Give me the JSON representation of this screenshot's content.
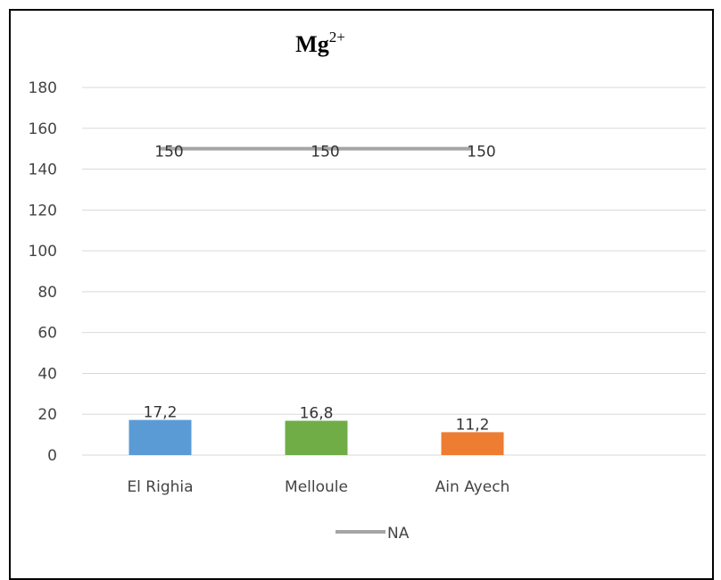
{
  "chart_data": {
    "type": "bar",
    "title": "Mg",
    "title_superscript": "2+",
    "categories": [
      "El Righia",
      "Melloule",
      "Ain Ayech"
    ],
    "bars": {
      "values": [
        17.2,
        16.8,
        11.2
      ],
      "labels": [
        "17,2",
        "16,8",
        "11,2"
      ],
      "colors": [
        "#5b9bd5",
        "#70ad47",
        "#ed7d31"
      ]
    },
    "series": [
      {
        "name": "NA",
        "type": "line",
        "values": [
          150,
          150,
          150
        ],
        "labels": [
          "150",
          "150",
          "150"
        ],
        "color": "#a5a5a5"
      }
    ],
    "y_ticks": [
      "0",
      "20",
      "40",
      "60",
      "80",
      "100",
      "120",
      "140",
      "160",
      "180"
    ],
    "ylim": [
      0,
      180
    ],
    "grid": true,
    "legend_position": "bottom"
  }
}
